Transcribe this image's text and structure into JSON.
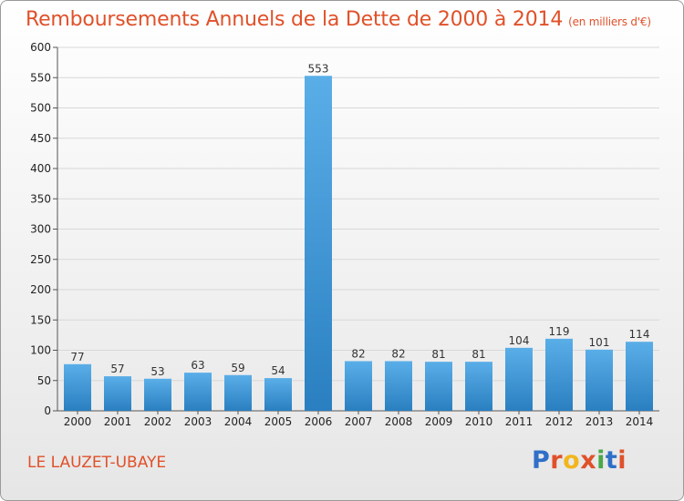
{
  "page": {
    "title": "Remboursements Annuels de la Dette de 2000 à 2014",
    "subtitle": "(en milliers d'€)",
    "commune": "LE LAUZET-UBAYE",
    "logo": {
      "letters": [
        "P",
        "r",
        "o",
        "x",
        "i",
        "t",
        "i"
      ],
      "colors": [
        "#2f6fc8",
        "#e0512a",
        "#f2b61c",
        "#e0512a",
        "#4aa84a",
        "#2f6fc8",
        "#e0512a"
      ]
    }
  },
  "colors": {
    "title": "#e0512a",
    "bar_top": "#5aaee8",
    "bar_bottom": "#2a7fc0",
    "grid": "#d8d8d8"
  },
  "chart_data": {
    "type": "bar",
    "title": "Remboursements Annuels de la Dette de 2000 à 2014",
    "subtitle": "(en milliers d'€)",
    "categories": [
      "2000",
      "2001",
      "2002",
      "2003",
      "2004",
      "2005",
      "2006",
      "2007",
      "2008",
      "2009",
      "2010",
      "2011",
      "2012",
      "2013",
      "2014"
    ],
    "values": [
      77,
      57,
      53,
      63,
      59,
      54,
      553,
      82,
      82,
      81,
      81,
      104,
      119,
      101,
      114
    ],
    "ylim": [
      0,
      600
    ],
    "yticks": [
      0,
      50,
      100,
      150,
      200,
      250,
      300,
      350,
      400,
      450,
      500,
      550,
      600
    ],
    "grid": true,
    "data_labels": true
  }
}
